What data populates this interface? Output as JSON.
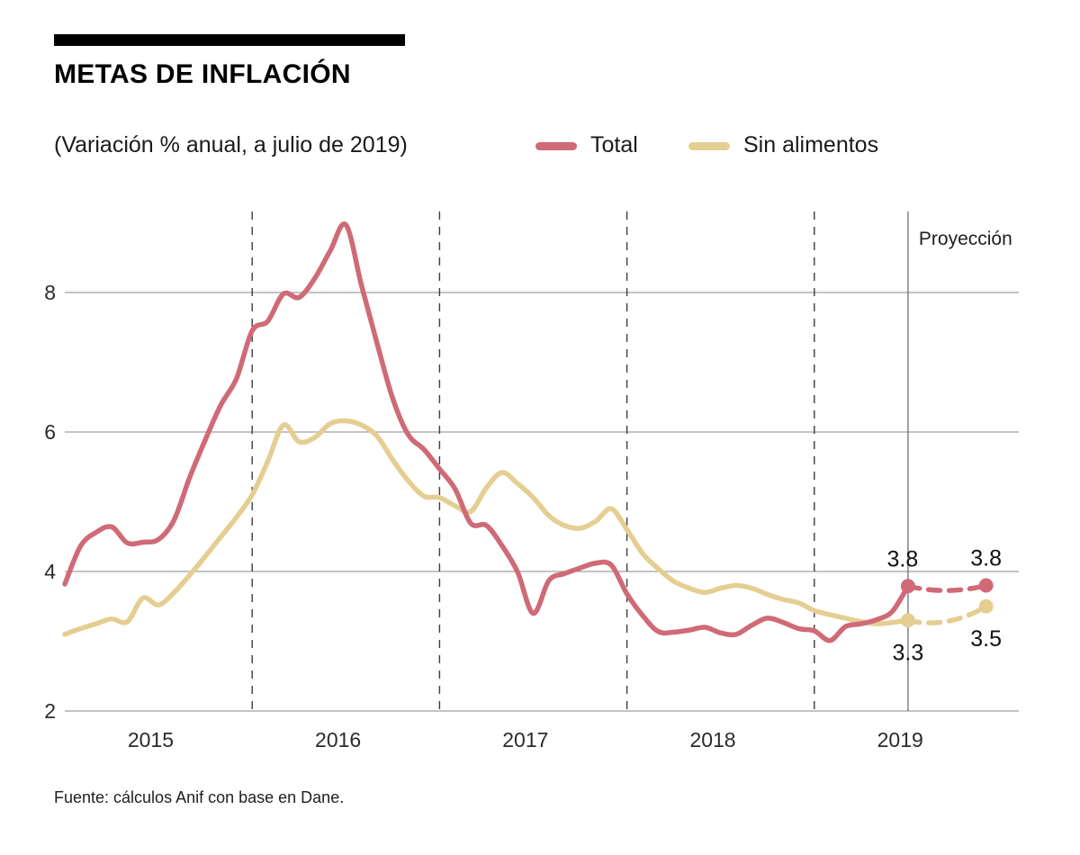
{
  "header": {
    "title": "METAS DE INFLACIÓN",
    "subtitle": "(Variación % anual, a julio de 2019)"
  },
  "legend": {
    "items": [
      {
        "label": "Total",
        "color": "#cf6a76"
      },
      {
        "label": "Sin alimentos",
        "color": "#e5ce92"
      }
    ]
  },
  "chart_data": {
    "type": "line",
    "title": "METAS DE INFLACIÓN",
    "subtitle": "(Variación % anual, a julio de 2019)",
    "x_start": "2015-01",
    "x_frequency": "monthly",
    "x_tick_labels": [
      "2015",
      "2016",
      "2017",
      "2018",
      "2019"
    ],
    "y_ticks": [
      8,
      6,
      4,
      2
    ],
    "ylim": [
      2,
      9.2
    ],
    "grid": "horizontal gray lines; dashed vertical lines at year boundaries; solid vertical line at projection start",
    "legend_position": "top",
    "projection": {
      "label": "Proyección",
      "start_index": 54,
      "end_index": 59
    },
    "series": [
      {
        "name": "Total",
        "color": "#cf6a76",
        "values": [
          3.82,
          4.36,
          4.56,
          4.64,
          4.41,
          4.42,
          4.46,
          4.74,
          5.35,
          5.89,
          6.39,
          6.77,
          7.45,
          7.59,
          7.98,
          7.93,
          8.2,
          8.6,
          8.97,
          8.1,
          7.27,
          6.48,
          5.96,
          5.75,
          5.47,
          5.18,
          4.69,
          4.66,
          4.37,
          3.99,
          3.4,
          3.87,
          3.97,
          4.05,
          4.12,
          4.09,
          3.68,
          3.37,
          3.14,
          3.13,
          3.16,
          3.2,
          3.12,
          3.1,
          3.23,
          3.33,
          3.27,
          3.18,
          3.15,
          3.01,
          3.21,
          3.25,
          3.31,
          3.43,
          3.79
        ],
        "projection_value": 3.8,
        "point_labels": {
          "start": "3.8",
          "end": "3.8"
        },
        "label_position": "above"
      },
      {
        "name": "Sin alimentos",
        "color": "#e5ce92",
        "values": [
          3.1,
          3.18,
          3.25,
          3.32,
          3.28,
          3.62,
          3.52,
          3.7,
          3.95,
          4.22,
          4.5,
          4.78,
          5.1,
          5.58,
          6.1,
          5.86,
          5.92,
          6.12,
          6.16,
          6.1,
          5.94,
          5.6,
          5.3,
          5.08,
          5.06,
          4.94,
          4.86,
          5.2,
          5.42,
          5.26,
          5.06,
          4.8,
          4.66,
          4.62,
          4.72,
          4.9,
          4.6,
          4.26,
          4.04,
          3.86,
          3.76,
          3.7,
          3.76,
          3.8,
          3.76,
          3.67,
          3.6,
          3.55,
          3.44,
          3.38,
          3.33,
          3.28,
          3.25,
          3.27,
          3.3
        ],
        "projection_value": 3.5,
        "point_labels": {
          "start": "3.3",
          "end": "3.5"
        },
        "label_position": "below"
      }
    ]
  },
  "footer": {
    "source": "Fuente: cálculos Anif con base en Dane."
  }
}
